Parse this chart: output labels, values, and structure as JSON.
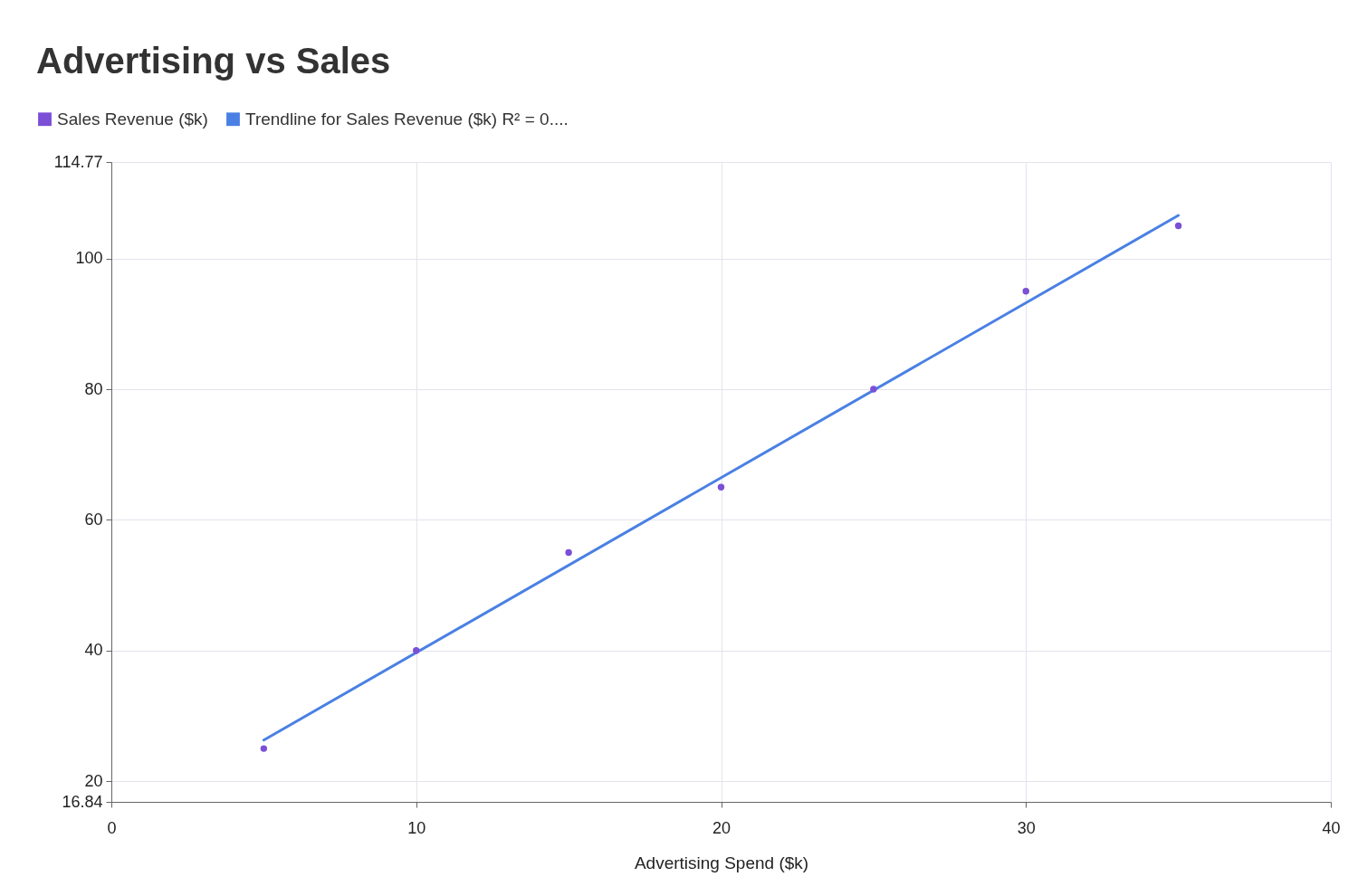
{
  "chart_data": {
    "type": "scatter",
    "title": "Advertising vs Sales",
    "xlabel": "Advertising Spend ($k)",
    "x": [
      5,
      10,
      15,
      20,
      25,
      30,
      35
    ],
    "series": [
      {
        "name": "Sales Revenue ($k)",
        "color": "#7b4fd6",
        "marker": "circle",
        "values": [
          25,
          40,
          55,
          65,
          80,
          95,
          105
        ]
      },
      {
        "name": "Trendline for Sales Revenue ($k) R² = 0....",
        "type": "line",
        "color": "#4a80e4",
        "x": [
          5,
          35
        ],
        "values": [
          26.3,
          106.6
        ]
      }
    ],
    "xlim": [
      0,
      40
    ],
    "xticks": [
      0,
      10,
      20,
      30,
      40
    ],
    "ylim": [
      16.84,
      114.77
    ],
    "yticks": [
      {
        "value": 16.84,
        "label": "16.84"
      },
      20,
      40,
      60,
      80,
      100,
      {
        "value": 114.77,
        "label": "114.77"
      }
    ],
    "grid": true,
    "legend": "top left"
  }
}
